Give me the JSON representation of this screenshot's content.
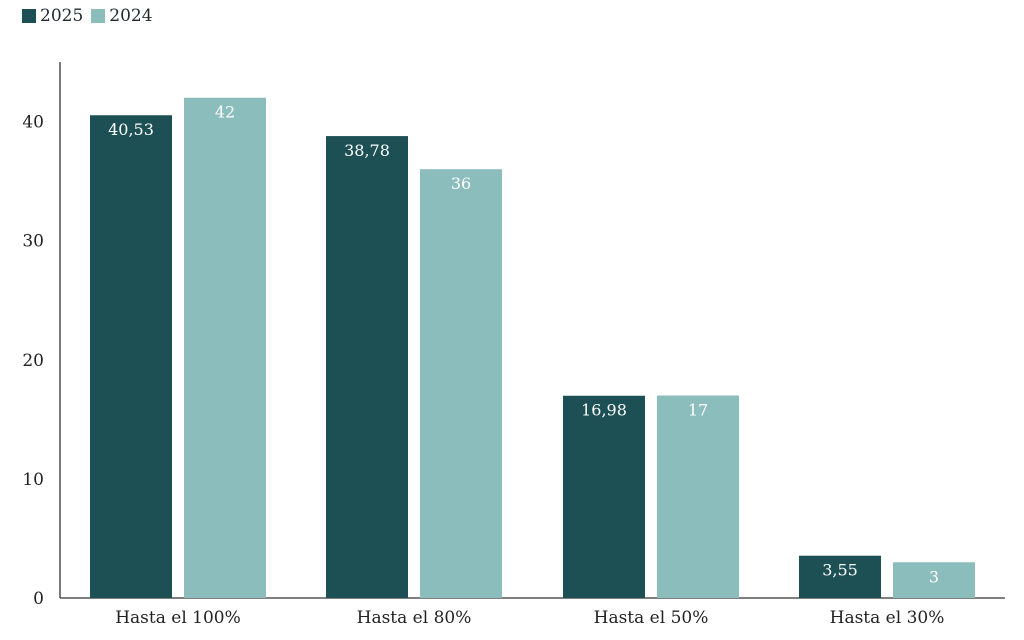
{
  "chart_data": {
    "type": "bar",
    "categories": [
      "Hasta el 100%",
      "Hasta el 80%",
      "Hasta el 50%",
      "Hasta el 30%"
    ],
    "series": [
      {
        "name": "2025",
        "values": [
          40.53,
          38.78,
          16.98,
          3.55
        ],
        "labels": [
          "40,53",
          "38,78",
          "16,98",
          "3,55"
        ],
        "color": "#1c5055"
      },
      {
        "name": "2024",
        "values": [
          42,
          36,
          17,
          3
        ],
        "labels": [
          "42",
          "36",
          "17",
          "3"
        ],
        "color": "#8cbdbd"
      }
    ],
    "yticks": [
      "0",
      "10",
      "20",
      "30",
      "40"
    ],
    "ylim": [
      0,
      45
    ],
    "legend_position": "top-left",
    "grid": false
  }
}
